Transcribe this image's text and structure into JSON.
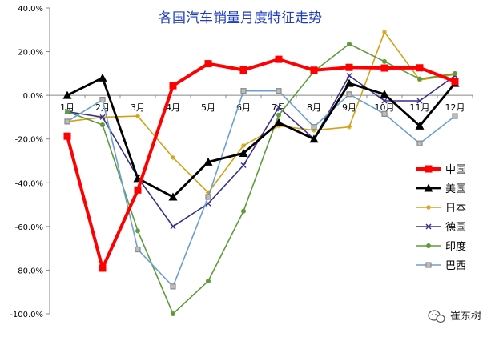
{
  "chart_data": {
    "type": "line",
    "title": "各国汽车销量月度特征走势",
    "categories": [
      "1月",
      "2月",
      "3月",
      "4月",
      "5月",
      "6月",
      "7月",
      "8月",
      "9月",
      "10月",
      "11月",
      "12月"
    ],
    "ylim": [
      -100,
      40
    ],
    "yticks": [
      "40.0%",
      "20.0%",
      "0.0%",
      "-20.0%",
      "-40.0%",
      "-60.0%",
      "-80.0%",
      "-100.0%"
    ],
    "grid": false,
    "legend_position": "right",
    "series": [
      {
        "name": "中国",
        "color": "#ff0000",
        "marker": "square",
        "values": [
          -18.7,
          -79.1,
          -43.3,
          4.4,
          14.5,
          11.6,
          16.5,
          11.5,
          12.8,
          12.5,
          12.6,
          6.4
        ]
      },
      {
        "name": "美国",
        "color": "#000000",
        "marker": "triangle",
        "values": [
          0.0,
          8.0,
          -38.0,
          -46.5,
          -30.5,
          -26.5,
          -12.5,
          -20.0,
          5.5,
          0.5,
          -14.0,
          5.5
        ]
      },
      {
        "name": "日本",
        "color": "#d4a017",
        "marker": "star",
        "values": [
          -12.0,
          -10.0,
          -9.5,
          -28.5,
          -44.5,
          -23.0,
          -14.0,
          -16.0,
          -14.5,
          29.0,
          7.0,
          9.5
        ]
      },
      {
        "name": "德国",
        "color": "#3a2f8f",
        "marker": "cross",
        "values": [
          -7.5,
          -10.0,
          -37.5,
          -60.0,
          -49.5,
          -32.0,
          -5.5,
          -20.0,
          9.0,
          -2.5,
          -2.5,
          9.0
        ]
      },
      {
        "name": "印度",
        "color": "#5f9b3a",
        "marker": "circle",
        "values": [
          -7.5,
          -13.5,
          -62.0,
          -100.0,
          -85.0,
          -53.0,
          -9.0,
          11.0,
          23.5,
          15.5,
          7.5,
          10.0
        ]
      },
      {
        "name": "巴西",
        "color": "#6a9fd4",
        "marker": "hollow-square",
        "values": [
          -12.0,
          -2.0,
          -70.5,
          -87.5,
          -46.5,
          2.0,
          2.0,
          -14.5,
          0.5,
          -8.5,
          -22.0,
          -9.5
        ]
      }
    ]
  },
  "watermark": {
    "text": "崔东树",
    "icon": "chat-bubble-icon"
  }
}
